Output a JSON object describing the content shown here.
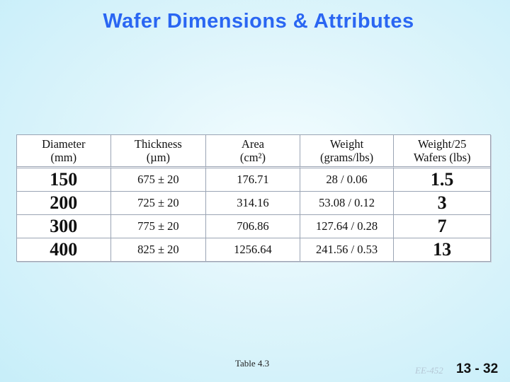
{
  "title": "Wafer Dimensions & Attributes",
  "table": {
    "headers": [
      {
        "line1": "Diameter",
        "line2": "(mm)"
      },
      {
        "line1": "Thickness",
        "line2": "(µm)"
      },
      {
        "line1": "Area",
        "line2": "(cm²)"
      },
      {
        "line1": "Weight",
        "line2": "(grams/lbs)"
      },
      {
        "line1": "Weight/25",
        "line2": "Wafers (lbs)"
      }
    ],
    "rows": [
      {
        "diameter": "150",
        "thickness": "675 ± 20",
        "area": "176.71",
        "weight": "28 / 0.06",
        "weight25": "1.5"
      },
      {
        "diameter": "200",
        "thickness": "725 ± 20",
        "area": "314.16",
        "weight": "53.08 / 0.12",
        "weight25": "3"
      },
      {
        "diameter": "300",
        "thickness": "775 ± 20",
        "area": "706.86",
        "weight": "127.64 / 0.28",
        "weight25": "7"
      },
      {
        "diameter": "400",
        "thickness": "825 ± 20",
        "area": "1256.64",
        "weight": "241.56 / 0.53",
        "weight25": "13"
      }
    ]
  },
  "footer": {
    "caption": "Table 4.3",
    "course": "EE-452",
    "page": "13 - 32"
  }
}
